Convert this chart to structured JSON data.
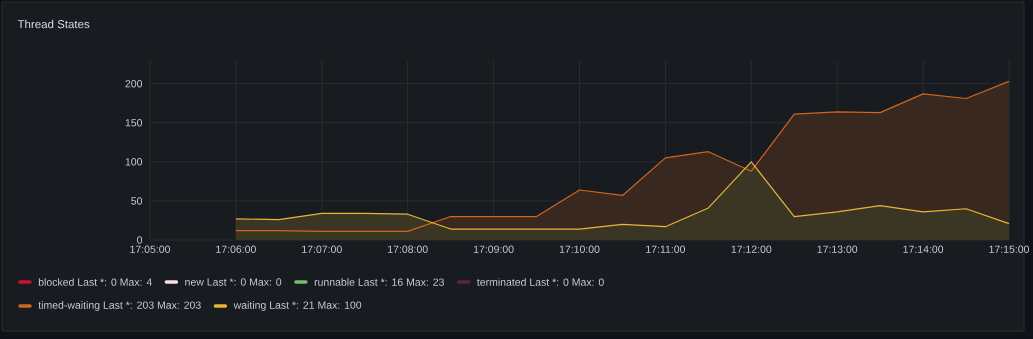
{
  "chart_data": {
    "type": "area",
    "title": "Thread States",
    "x": [
      17.1,
      17.108333,
      17.116667,
      17.125,
      17.133333,
      17.141667,
      17.15,
      17.158333,
      17.166667,
      17.175,
      17.183333,
      17.191667,
      17.2,
      17.208333,
      17.216667,
      17.225,
      17.233333,
      17.241667,
      17.25
    ],
    "series": [
      {
        "name": "blocked  Last *: 0  Max: 4",
        "color": "#c4162a",
        "values": [
          null,
          null,
          null,
          null,
          null,
          null,
          null,
          null,
          null,
          null,
          null,
          null,
          null,
          null,
          null,
          null,
          null,
          null,
          null
        ]
      },
      {
        "name": "new  Last *: 0  Max: 0",
        "color": "#fce2de",
        "values": [
          null,
          null,
          null,
          null,
          null,
          null,
          null,
          null,
          null,
          null,
          null,
          null,
          null,
          null,
          null,
          null,
          null,
          null,
          null
        ]
      },
      {
        "name": "runnable  Last *: 16  Max: 23",
        "color": "#73bf69",
        "values": [
          null,
          null,
          null,
          null,
          null,
          null,
          null,
          null,
          null,
          null,
          null,
          null,
          null,
          null,
          null,
          null,
          null,
          null,
          null
        ]
      },
      {
        "name": "terminated  Last *: 0  Max: 0",
        "color": "#5c2051",
        "values": [
          null,
          null,
          null,
          null,
          null,
          null,
          null,
          null,
          null,
          null,
          null,
          null,
          null,
          null,
          null,
          null,
          null,
          null,
          null
        ]
      },
      {
        "name": "timed-waiting  Last *: 203  Max: 203",
        "color": "#d2651e",
        "values": [
          12,
          12,
          11,
          11,
          11,
          30,
          30,
          30,
          64,
          57,
          105,
          113,
          88,
          161,
          164,
          163,
          187,
          181,
          203
        ]
      },
      {
        "name": "waiting  Last *: 21  Max: 100",
        "color": "#e6b735",
        "values": [
          27,
          26,
          34,
          34,
          33,
          14,
          14,
          14,
          14,
          20,
          17,
          41,
          100,
          30,
          36,
          44,
          36,
          40,
          21
        ]
      }
    ],
    "xlim": [
      17.083333,
      17.25
    ],
    "xticks": [
      {
        "value": 17.083333,
        "label": "17:05:00"
      },
      {
        "value": 17.1,
        "label": "17:06:00"
      },
      {
        "value": 17.116667,
        "label": "17:07:00"
      },
      {
        "value": 17.133333,
        "label": "17:08:00"
      },
      {
        "value": 17.15,
        "label": "17:09:00"
      },
      {
        "value": 17.166667,
        "label": "17:10:00"
      },
      {
        "value": 17.183333,
        "label": "17:11:00"
      },
      {
        "value": 17.2,
        "label": "17:12:00"
      },
      {
        "value": 17.216667,
        "label": "17:13:00"
      },
      {
        "value": 17.233333,
        "label": "17:14:00"
      },
      {
        "value": 17.25,
        "label": "17:15:00"
      }
    ],
    "ylim": [
      0,
      229
    ],
    "yticks": [
      0,
      50,
      100,
      150,
      200
    ],
    "grid": true,
    "legend": "bottom"
  }
}
